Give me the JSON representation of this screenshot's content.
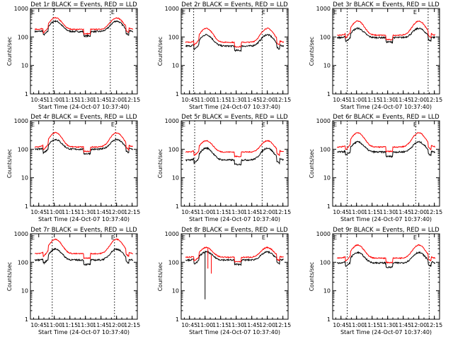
{
  "chart_data": {
    "type": "line",
    "y_scale": "log",
    "ylim": [
      1,
      1000
    ],
    "ylabel": "Counts/sec",
    "xlabel": "Start Time (24-Oct-07 10:37:40)",
    "x_ticks": [
      "10:45",
      "11:00",
      "11:15",
      "11:30",
      "11:45",
      "12:00",
      "12:15"
    ],
    "y_ticks": [
      "1",
      "10",
      "100",
      "1000"
    ],
    "series_colors": {
      "events": "#000000",
      "lld": "#ff0000"
    },
    "panels": [
      {
        "title": "Det 1r BLACK = Events, RED = LLD",
        "marker": "E",
        "x_ticks": [
          "10:45",
          "11:00",
          "11:15",
          "11:30",
          "11:45",
          "12:00",
          "12:15"
        ],
        "dotted_lines": [
          "10:59",
          "11:54"
        ],
        "events_base": 155,
        "events_peak": 360,
        "lld_base": 185,
        "lld_peak": 470
      },
      {
        "title": "Det 2r BLACK = Events, RED = LLD",
        "marker": "E",
        "x_ticks": [
          "10:45",
          "11:00",
          "11:15",
          "11:30",
          "11:45",
          "12:00",
          "12:15"
        ],
        "dotted_lines": [
          "10:49",
          "11:55"
        ],
        "events_base": 48,
        "events_peak": 120,
        "lld_base": 65,
        "lld_peak": 200
      },
      {
        "title": "Det 3r BLACK = Events, RED = LLD",
        "marker": "E",
        "x_ticks": [
          "10:45",
          "11:00",
          "11:15",
          "11:30",
          "11:45",
          "12:00",
          "12:15"
        ],
        "dotted_lines": [
          "10:51",
          "12:09"
        ],
        "events_base": 95,
        "events_peak": 200,
        "lld_base": 115,
        "lld_peak": 360
      },
      {
        "title": "Det 4r BLACK = Events, RED = LLD",
        "marker": "E",
        "x_ticks": [
          "10:45",
          "11:00",
          "11:15",
          "11:30",
          "11:45",
          "12:00",
          "12:15"
        ],
        "dotted_lines": [
          "10:59",
          "11:59"
        ],
        "events_base": 100,
        "events_peak": 220,
        "lld_base": 120,
        "lld_peak": 380
      },
      {
        "title": "Det 5r BLACK = Events, RED = LLD",
        "marker": "E",
        "x_ticks": [
          "10:45",
          "11:00",
          "11:15",
          "11:30",
          "11:45",
          "12:00",
          "12:15"
        ],
        "dotted_lines": [
          "10:50",
          "11:55"
        ],
        "events_base": 42,
        "events_peak": 110,
        "lld_base": 80,
        "lld_peak": 200
      },
      {
        "title": "Det 6r BLACK = Events, RED = LLD",
        "marker": "E",
        "x_ticks": [
          "10:45",
          "11:00",
          "11:15",
          "11:30",
          "11:45",
          "12:00",
          "12:15"
        ],
        "dotted_lines": [
          "10:51",
          "11:57"
        ],
        "events_base": 80,
        "events_peak": 180,
        "lld_base": 120,
        "lld_peak": 380
      },
      {
        "title": "Det 7r BLACK = Events, RED = LLD",
        "marker": "E",
        "x_ticks": [
          "10:45",
          "11:00",
          "11:15",
          "11:30",
          "11:45",
          "12:00",
          "12:15"
        ],
        "dotted_lines": [
          "10:58",
          "11:58"
        ],
        "events_base": 120,
        "events_peak": 290,
        "lld_base": 200,
        "lld_peak": 640
      },
      {
        "title": "Det 8r BLACK = Events, RED = LLD",
        "marker": "E",
        "x_ticks": [
          "10:45",
          "11:00",
          "11:15",
          "11:30",
          "11:45",
          "12:00",
          "12:15"
        ],
        "dotted_lines": [],
        "events_base": 120,
        "events_peak": 230,
        "lld_base": 150,
        "lld_peak": 330,
        "has_dropout": true
      },
      {
        "title": "Det 9r BLACK = Events, RED = LLD",
        "marker": "E",
        "x_ticks": [
          "10:45",
          "11:00",
          "11:15",
          "11:30",
          "11:45",
          "12:00",
          "12:15"
        ],
        "dotted_lines": [
          "10:51",
          "12:10"
        ],
        "events_base": 95,
        "events_peak": 220,
        "lld_base": 140,
        "lld_peak": 400
      }
    ]
  }
}
